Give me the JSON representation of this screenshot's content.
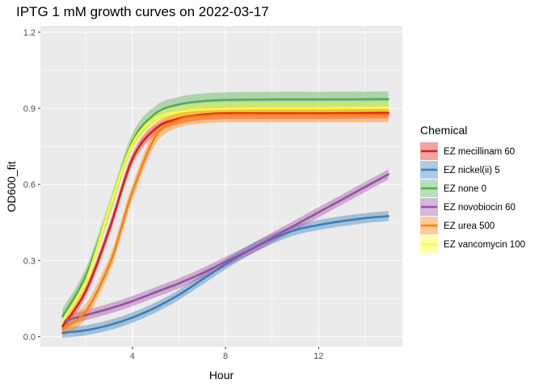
{
  "chart_data": {
    "type": "line",
    "title": "IPTG 1 mM growth curves on 2022-03-17",
    "xlabel": "Hour",
    "ylabel": "OD600_fit",
    "xlim": [
      0.05,
      15.6
    ],
    "ylim": [
      -0.04,
      1.225
    ],
    "x_ticks": [
      4,
      8,
      12
    ],
    "x_tick_labels": [
      "4",
      "8",
      "12"
    ],
    "y_ticks": [
      0.0,
      0.3,
      0.6,
      0.9,
      1.2
    ],
    "y_tick_labels": [
      "0.0",
      "0.3",
      "0.6",
      "0.9",
      "1.2"
    ],
    "grid": true,
    "panel_background": "#ebebeb",
    "legend": {
      "title": "Chemical",
      "position": "right"
    },
    "series": [
      {
        "name": "EZ mecillinam 60",
        "color": "#e41a1c",
        "band": 0.022,
        "x": [
          1,
          2,
          3,
          4,
          5,
          6,
          7,
          8,
          10,
          12,
          15
        ],
        "y": [
          0.04,
          0.18,
          0.42,
          0.7,
          0.82,
          0.86,
          0.875,
          0.88,
          0.88,
          0.88,
          0.882
        ]
      },
      {
        "name": "EZ nickel(ii) 5",
        "color": "#377eb8",
        "band": 0.02,
        "x": [
          1,
          2,
          3,
          4,
          5,
          6,
          7,
          8,
          9,
          10,
          11,
          12,
          13,
          14,
          15
        ],
        "y": [
          0.015,
          0.025,
          0.045,
          0.075,
          0.115,
          0.165,
          0.225,
          0.285,
          0.34,
          0.385,
          0.42,
          0.44,
          0.455,
          0.467,
          0.475
        ]
      },
      {
        "name": "EZ none 0",
        "color": "#4daf4a",
        "band": 0.03,
        "x": [
          1,
          2,
          3,
          4,
          5,
          6,
          7,
          8,
          10,
          12,
          15
        ],
        "y": [
          0.08,
          0.24,
          0.5,
          0.77,
          0.88,
          0.915,
          0.928,
          0.933,
          0.935,
          0.935,
          0.936
        ]
      },
      {
        "name": "EZ novobiocin 60",
        "color": "#984ea3",
        "band": 0.02,
        "x": [
          1,
          2,
          3,
          4,
          5,
          6,
          7,
          8,
          9,
          10,
          11,
          12,
          13,
          14,
          15
        ],
        "y": [
          0.06,
          0.085,
          0.11,
          0.14,
          0.175,
          0.21,
          0.25,
          0.295,
          0.34,
          0.39,
          0.44,
          0.49,
          0.54,
          0.59,
          0.64
        ]
      },
      {
        "name": "EZ urea 500",
        "color": "#ff7f00",
        "band": 0.03,
        "x": [
          1,
          2,
          3,
          3.5,
          4,
          5,
          6,
          7,
          8,
          10,
          12,
          15
        ],
        "y": [
          0.03,
          0.1,
          0.28,
          0.42,
          0.57,
          0.79,
          0.855,
          0.87,
          0.875,
          0.875,
          0.875,
          0.875
        ]
      },
      {
        "name": "EZ vancomycin 100",
        "color": "#ffff33",
        "band": 0.025,
        "x": [
          1,
          2,
          3,
          4,
          5,
          6,
          7,
          8,
          10,
          12,
          15
        ],
        "y": [
          0.06,
          0.22,
          0.5,
          0.76,
          0.86,
          0.885,
          0.895,
          0.898,
          0.9,
          0.9,
          0.902
        ]
      }
    ]
  }
}
